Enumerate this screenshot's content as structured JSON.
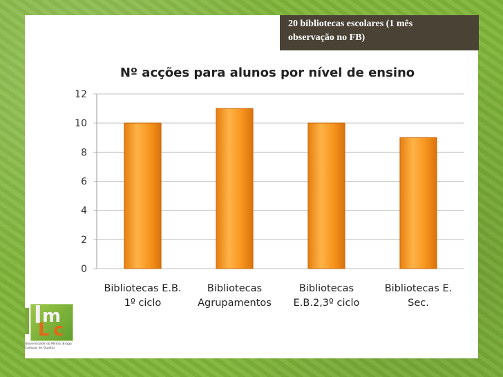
{
  "callout": {
    "line1": "20 bibliotecas escolares (1 mês",
    "line2": "observação no FB)"
  },
  "logo": {
    "caption_line1": "Universidade do Minho, Braga",
    "caption_line2": "Campus de Gualtar"
  },
  "colors": {
    "bar_fill": "#f7941d",
    "bar_edge": "#c8660a",
    "callout_bg": "#4a4235",
    "background": "#7fb43a"
  },
  "chart_data": {
    "type": "bar",
    "title": "Nº acções para alunos por nível de ensino",
    "categories": [
      [
        "Bibliotecas E.B.",
        "1º ciclo"
      ],
      [
        "Bibliotecas",
        "Agrupamentos"
      ],
      [
        "Bibliotecas",
        "E.B.2,3º ciclo"
      ],
      [
        "Bibliotecas E.",
        "Sec."
      ]
    ],
    "values": [
      10,
      11,
      10,
      9
    ],
    "ylim": [
      0,
      12
    ],
    "yticks": [
      0,
      2,
      4,
      6,
      8,
      10,
      12
    ],
    "grid": true,
    "legend": "none"
  }
}
